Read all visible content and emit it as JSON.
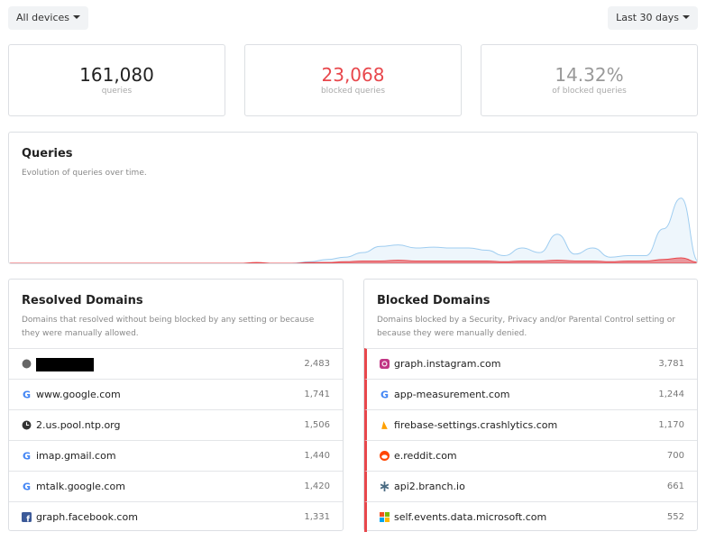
{
  "toolbar": {
    "devices": "All devices",
    "range": "Last 30 days"
  },
  "stats": [
    {
      "value": "161,080",
      "label": "queries"
    },
    {
      "value": "23,068",
      "label": "blocked queries"
    },
    {
      "value": "14.32%",
      "label": "of blocked queries"
    }
  ],
  "chart_data": {
    "type": "area",
    "title": "Queries",
    "subtitle": "Evolution of queries over time.",
    "ylim": [
      0,
      100
    ],
    "series": [
      {
        "color": "#9fcdf0",
        "values": [
          0,
          0,
          0,
          0,
          0,
          0,
          0,
          0,
          0,
          0,
          0,
          0,
          0,
          0,
          0,
          0,
          0,
          2,
          5,
          8,
          14,
          22,
          24,
          20,
          21,
          20,
          20,
          17,
          10,
          20,
          14,
          38,
          12,
          20,
          8,
          10,
          10,
          45,
          85,
          2
        ]
      },
      {
        "color": "#e8474c",
        "values": [
          0,
          0,
          0,
          0,
          0,
          0,
          0,
          0,
          0,
          0,
          0,
          0,
          0,
          0,
          1,
          0,
          0,
          1,
          1,
          2,
          3,
          3,
          4,
          3,
          3,
          3,
          3,
          3,
          2,
          3,
          3,
          4,
          3,
          3,
          2,
          3,
          3,
          5,
          7,
          1
        ]
      }
    ]
  },
  "resolved": {
    "title": "Resolved Domains",
    "description": "Domains that resolved without being blocked by any setting or because they were manually allowed.",
    "rows": [
      {
        "domain": null,
        "count": "2,483"
      },
      {
        "domain": "www.google.com",
        "count": "1,741"
      },
      {
        "domain": "2.us.pool.ntp.org",
        "count": "1,506"
      },
      {
        "domain": "imap.gmail.com",
        "count": "1,440"
      },
      {
        "domain": "mtalk.google.com",
        "count": "1,420"
      },
      {
        "domain": "graph.facebook.com",
        "count": "1,331"
      }
    ]
  },
  "blocked": {
    "title": "Blocked Domains",
    "description": "Domains blocked by a Security, Privacy and/or Parental Control setting or because they were manually denied.",
    "rows": [
      {
        "domain": "graph.instagram.com",
        "count": "3,781"
      },
      {
        "domain": "app-measurement.com",
        "count": "1,244"
      },
      {
        "domain": "firebase-settings.crashlytics.com",
        "count": "1,170"
      },
      {
        "domain": "e.reddit.com",
        "count": "700"
      },
      {
        "domain": "api2.branch.io",
        "count": "661"
      },
      {
        "domain": "self.events.data.microsoft.com",
        "count": "552"
      }
    ]
  }
}
